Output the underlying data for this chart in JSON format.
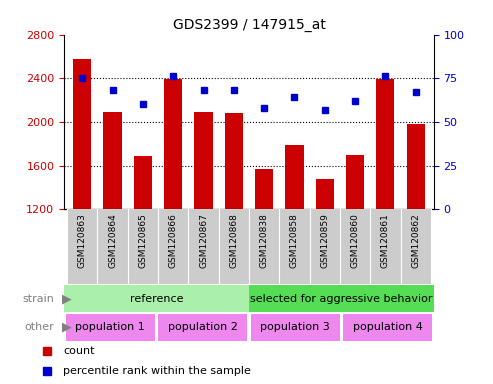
{
  "title": "GDS2399 / 147915_at",
  "samples": [
    "GSM120863",
    "GSM120864",
    "GSM120865",
    "GSM120866",
    "GSM120867",
    "GSM120868",
    "GSM120838",
    "GSM120858",
    "GSM120859",
    "GSM120860",
    "GSM120861",
    "GSM120862"
  ],
  "counts": [
    2580,
    2090,
    1690,
    2390,
    2090,
    2080,
    1570,
    1790,
    1480,
    1700,
    2390,
    1980
  ],
  "percentiles": [
    75,
    68,
    60,
    76,
    68,
    68,
    58,
    64,
    57,
    62,
    76,
    67
  ],
  "ymin": 1200,
  "ymax": 2800,
  "yticks": [
    1200,
    1600,
    2000,
    2400,
    2800
  ],
  "y2min": 0,
  "y2max": 100,
  "y2ticks": [
    0,
    25,
    50,
    75,
    100
  ],
  "gridlines": [
    1600,
    2000,
    2400
  ],
  "bar_color": "#cc0000",
  "dot_color": "#0000cc",
  "strain_ref_color": "#aaf0aa",
  "strain_agg_color": "#55dd55",
  "other_color": "#ee88ee",
  "tick_area_color": "#cccccc",
  "strain_ref_label": "reference",
  "strain_agg_label": "selected for aggressive behavior",
  "pop_labels": [
    "population 1",
    "population 2",
    "population 3",
    "population 4"
  ],
  "legend_count_label": "count",
  "legend_pct_label": "percentile rank within the sample",
  "bar_color_left": "#cc0000",
  "tick_color_right": "#0000cc",
  "bg_color": "#ffffff"
}
